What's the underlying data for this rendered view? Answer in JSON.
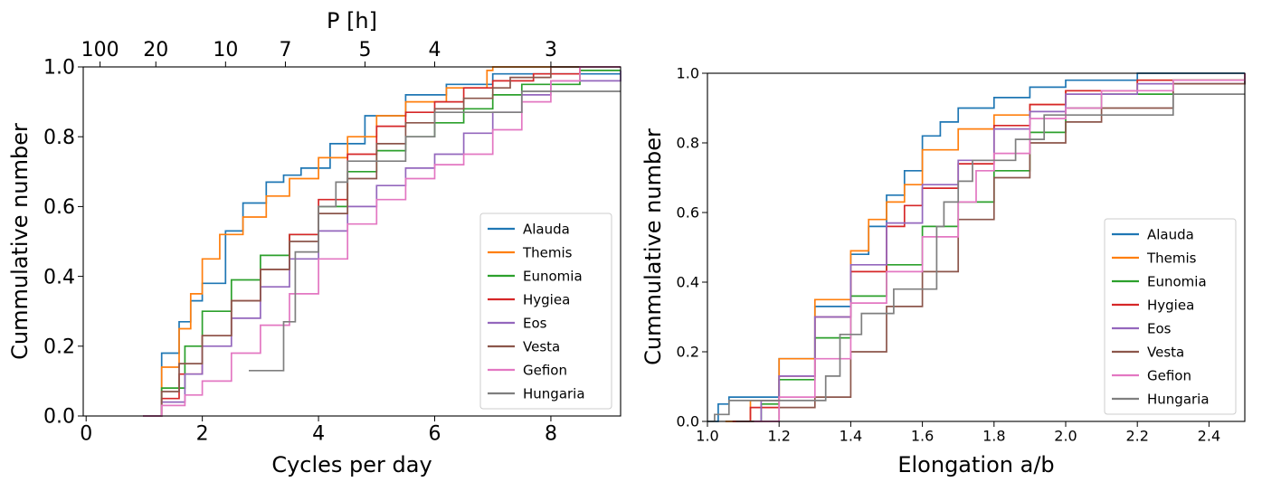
{
  "chart_data": [
    {
      "type": "line",
      "step": "cumulative",
      "title": "",
      "xlabel": "Cycles per day",
      "ylabel": "Cummulative number",
      "top_axis_label": "P [h]",
      "top_axis_ticks": [
        {
          "label": "100",
          "cycles_per_day": 0.24
        },
        {
          "label": "20",
          "cycles_per_day": 1.2
        },
        {
          "label": "10",
          "cycles_per_day": 2.4
        },
        {
          "label": "7",
          "cycles_per_day": 3.43
        },
        {
          "label": "5",
          "cycles_per_day": 4.8
        },
        {
          "label": "4",
          "cycles_per_day": 6.0
        },
        {
          "label": "3",
          "cycles_per_day": 8.0
        }
      ],
      "xlim": [
        -0.05,
        9.2
      ],
      "ylim": [
        0,
        1
      ],
      "xticks": [
        "0",
        "2",
        "4",
        "6",
        "8"
      ],
      "yticks": [
        "0.0",
        "0.2",
        "0.4",
        "0.6",
        "0.8",
        "1.0"
      ],
      "legend_position": "lower-right",
      "grid": false,
      "series": [
        {
          "name": "Alauda",
          "color": "#1f77b4",
          "x": [
            0.98,
            1.3,
            1.6,
            1.8,
            2.0,
            2.4,
            2.7,
            3.1,
            3.4,
            3.7,
            4.2,
            4.8,
            5.5,
            6.2,
            7.0,
            7.6
          ],
          "y": [
            0.0,
            0.18,
            0.27,
            0.33,
            0.38,
            0.53,
            0.61,
            0.67,
            0.69,
            0.71,
            0.78,
            0.86,
            0.92,
            0.95,
            0.98,
            0.98
          ]
        },
        {
          "name": "Themis",
          "color": "#ff7f0e",
          "x": [
            0.98,
            1.3,
            1.6,
            1.8,
            2.0,
            2.3,
            2.7,
            3.1,
            3.5,
            4.0,
            4.5,
            5.0,
            5.5,
            6.2,
            6.9,
            7.0
          ],
          "y": [
            0.0,
            0.14,
            0.25,
            0.35,
            0.45,
            0.52,
            0.57,
            0.63,
            0.68,
            0.74,
            0.8,
            0.86,
            0.9,
            0.94,
            0.99,
            1.0
          ]
        },
        {
          "name": "Eunomia",
          "color": "#2ca02c",
          "x": [
            0.98,
            1.3,
            1.7,
            2.0,
            2.5,
            3.0,
            3.5,
            4.0,
            4.5,
            5.0,
            5.5,
            6.0,
            6.5,
            7.0,
            7.5,
            8.5
          ],
          "y": [
            0.0,
            0.08,
            0.2,
            0.3,
            0.39,
            0.46,
            0.52,
            0.6,
            0.7,
            0.76,
            0.8,
            0.84,
            0.88,
            0.92,
            0.95,
            0.99
          ]
        },
        {
          "name": "Hygiea",
          "color": "#d62728",
          "x": [
            0.98,
            1.3,
            1.6,
            2.0,
            2.5,
            3.0,
            3.5,
            4.0,
            4.5,
            5.0,
            5.5,
            6.0,
            6.5,
            7.0,
            7.7,
            8.5
          ],
          "y": [
            0.0,
            0.05,
            0.12,
            0.23,
            0.33,
            0.42,
            0.52,
            0.62,
            0.75,
            0.83,
            0.87,
            0.9,
            0.94,
            0.96,
            0.98,
            1.0
          ]
        },
        {
          "name": "Eos",
          "color": "#9467bd",
          "x": [
            0.98,
            1.3,
            1.7,
            2.0,
            2.5,
            3.0,
            3.5,
            4.0,
            4.5,
            5.0,
            5.5,
            6.0,
            6.5,
            7.0,
            7.5,
            8.0,
            9.2
          ],
          "y": [
            0.0,
            0.04,
            0.12,
            0.2,
            0.28,
            0.37,
            0.45,
            0.53,
            0.6,
            0.66,
            0.71,
            0.75,
            0.81,
            0.87,
            0.92,
            0.96,
            0.99
          ]
        },
        {
          "name": "Vesta",
          "color": "#8c564b",
          "x": [
            0.98,
            1.3,
            1.6,
            2.0,
            2.5,
            3.0,
            3.5,
            4.0,
            4.5,
            5.0,
            5.5,
            6.0,
            6.5,
            7.0,
            7.3,
            8.0
          ],
          "y": [
            0.0,
            0.07,
            0.15,
            0.23,
            0.33,
            0.42,
            0.5,
            0.58,
            0.68,
            0.78,
            0.84,
            0.88,
            0.91,
            0.94,
            0.97,
            1.0
          ]
        },
        {
          "name": "Gefion",
          "color": "#e377c2",
          "x": [
            0.98,
            1.3,
            1.7,
            2.0,
            2.5,
            3.0,
            3.5,
            4.0,
            4.5,
            5.0,
            5.5,
            6.0,
            6.5,
            7.0,
            7.5,
            8.0,
            8.5
          ],
          "y": [
            0.0,
            0.03,
            0.06,
            0.1,
            0.18,
            0.26,
            0.35,
            0.45,
            0.55,
            0.62,
            0.68,
            0.72,
            0.75,
            0.82,
            0.9,
            0.96,
            1.0
          ]
        },
        {
          "name": "Hungaria",
          "color": "#7f7f7f",
          "x": [
            2.8,
            3.4,
            3.6,
            4.0,
            4.3,
            4.5,
            5.0,
            5.5,
            6.0,
            7.0,
            7.5,
            9.2
          ],
          "y": [
            0.13,
            0.27,
            0.47,
            0.6,
            0.67,
            0.73,
            0.73,
            0.8,
            0.87,
            0.87,
            0.93,
            0.93
          ]
        }
      ]
    },
    {
      "type": "line",
      "step": "cumulative",
      "title": "",
      "xlabel": "Elongation a/b",
      "ylabel": "Cummulative number",
      "xlim": [
        1.0,
        2.5
      ],
      "ylim": [
        0,
        1
      ],
      "xticks": [
        "1.0",
        "1.2",
        "1.4",
        "1.6",
        "1.8",
        "2.0",
        "2.2",
        "2.4"
      ],
      "yticks": [
        "0.0",
        "0.2",
        "0.4",
        "0.6",
        "0.8",
        "1.0"
      ],
      "legend_position": "lower-right",
      "grid": false,
      "series": [
        {
          "name": "Alauda",
          "color": "#1f77b4",
          "x": [
            1.0,
            1.03,
            1.06,
            1.12,
            1.2,
            1.3,
            1.4,
            1.45,
            1.5,
            1.55,
            1.6,
            1.65,
            1.7,
            1.8,
            1.9,
            2.0,
            2.2,
            2.5
          ],
          "y": [
            0.0,
            0.05,
            0.07,
            0.07,
            0.18,
            0.33,
            0.48,
            0.56,
            0.65,
            0.72,
            0.82,
            0.86,
            0.9,
            0.93,
            0.96,
            0.98,
            1.0,
            1.0
          ]
        },
        {
          "name": "Themis",
          "color": "#ff7f0e",
          "x": [
            1.05,
            1.12,
            1.2,
            1.3,
            1.4,
            1.45,
            1.5,
            1.55,
            1.6,
            1.7,
            1.8,
            1.9,
            2.0,
            2.2,
            2.5
          ],
          "y": [
            0.0,
            0.06,
            0.18,
            0.35,
            0.49,
            0.58,
            0.63,
            0.68,
            0.78,
            0.84,
            0.88,
            0.91,
            0.95,
            0.98,
            1.0
          ]
        },
        {
          "name": "Eunomia",
          "color": "#2ca02c",
          "x": [
            1.08,
            1.15,
            1.2,
            1.3,
            1.4,
            1.5,
            1.6,
            1.7,
            1.8,
            1.9,
            2.0,
            2.1,
            2.3,
            2.5
          ],
          "y": [
            0.0,
            0.05,
            0.12,
            0.24,
            0.36,
            0.45,
            0.56,
            0.63,
            0.72,
            0.83,
            0.9,
            0.94,
            0.98,
            1.0
          ]
        },
        {
          "name": "Hygiea",
          "color": "#d62728",
          "x": [
            1.07,
            1.12,
            1.2,
            1.3,
            1.4,
            1.5,
            1.55,
            1.6,
            1.7,
            1.8,
            1.9,
            2.0,
            2.2,
            2.5
          ],
          "y": [
            0.0,
            0.04,
            0.13,
            0.3,
            0.43,
            0.56,
            0.62,
            0.67,
            0.74,
            0.85,
            0.91,
            0.95,
            0.98,
            1.0
          ]
        },
        {
          "name": "Eos",
          "color": "#9467bd",
          "x": [
            1.08,
            1.15,
            1.2,
            1.3,
            1.4,
            1.5,
            1.6,
            1.7,
            1.8,
            1.9,
            2.0,
            2.2,
            2.5
          ],
          "y": [
            0.0,
            0.06,
            0.13,
            0.3,
            0.45,
            0.57,
            0.68,
            0.75,
            0.84,
            0.89,
            0.94,
            0.97,
            1.0
          ]
        },
        {
          "name": "Vesta",
          "color": "#8c564b",
          "x": [
            1.08,
            1.2,
            1.3,
            1.4,
            1.5,
            1.6,
            1.7,
            1.8,
            1.9,
            2.0,
            2.1,
            2.3,
            2.5
          ],
          "y": [
            0.0,
            0.04,
            0.07,
            0.2,
            0.33,
            0.43,
            0.58,
            0.7,
            0.8,
            0.86,
            0.9,
            0.97,
            1.0
          ]
        },
        {
          "name": "Gefion",
          "color": "#e377c2",
          "x": [
            1.13,
            1.2,
            1.3,
            1.4,
            1.5,
            1.6,
            1.7,
            1.75,
            1.8,
            1.9,
            2.0,
            2.1,
            2.3,
            2.5
          ],
          "y": [
            0.0,
            0.07,
            0.18,
            0.34,
            0.43,
            0.53,
            0.63,
            0.72,
            0.77,
            0.87,
            0.9,
            0.95,
            0.98,
            1.0
          ]
        },
        {
          "name": "Hungaria",
          "color": "#7f7f7f",
          "x": [
            1.0,
            1.02,
            1.06,
            1.13,
            1.33,
            1.37,
            1.43,
            1.52,
            1.64,
            1.66,
            1.7,
            1.74,
            1.86,
            1.94,
            2.3
          ],
          "y": [
            0.0,
            0.02,
            0.06,
            0.06,
            0.13,
            0.25,
            0.31,
            0.38,
            0.56,
            0.63,
            0.69,
            0.75,
            0.81,
            0.88,
            0.94
          ]
        }
      ]
    }
  ]
}
